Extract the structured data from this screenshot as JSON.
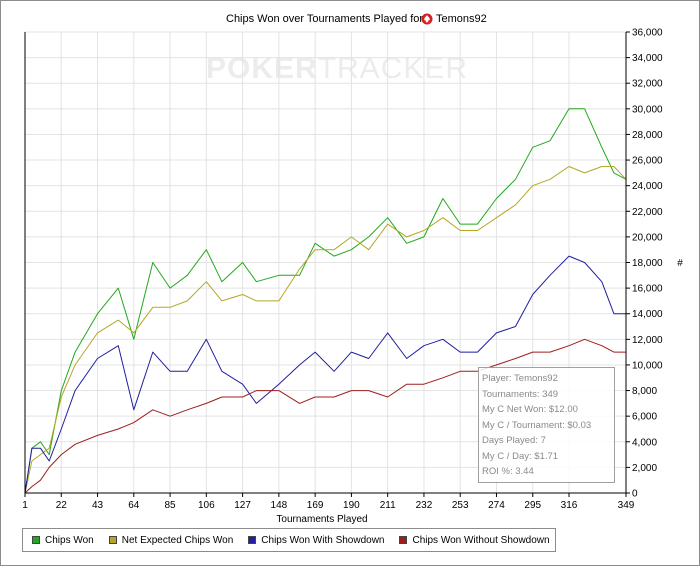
{
  "chart_data": {
    "type": "line",
    "title": "Chips Won over Tournaments Played for",
    "player": "Temons92",
    "xlabel": "Tournaments Played",
    "ylabel": "#",
    "xlim": [
      1,
      349
    ],
    "ylim": [
      0,
      36000
    ],
    "x_ticks": [
      1,
      22,
      43,
      64,
      85,
      106,
      127,
      148,
      169,
      190,
      211,
      232,
      253,
      274,
      295,
      316,
      349
    ],
    "y_ticks": [
      "0",
      "2,000",
      "4,000",
      "6,000",
      "8,000",
      "10,000",
      "12,000",
      "14,000",
      "16,000",
      "18,000",
      "20,000",
      "22,000",
      "24,000",
      "26,000",
      "28,000",
      "30,000",
      "32,000",
      "34,000",
      "36,000"
    ],
    "grid": true,
    "legend_position": "bottom",
    "x": [
      1,
      5,
      10,
      15,
      22,
      30,
      43,
      55,
      64,
      75,
      85,
      95,
      106,
      115,
      127,
      135,
      148,
      160,
      169,
      180,
      190,
      200,
      211,
      222,
      232,
      243,
      253,
      263,
      274,
      285,
      295,
      305,
      316,
      325,
      335,
      342,
      349
    ],
    "series": [
      {
        "name": "Chips Won",
        "color": "#22a81e",
        "values": [
          0,
          3500,
          4000,
          3000,
          8000,
          11000,
          14000,
          16000,
          12000,
          18000,
          16000,
          17000,
          19000,
          16500,
          18000,
          16500,
          17000,
          17000,
          19500,
          18500,
          19000,
          20000,
          21500,
          19500,
          20000,
          23000,
          21000,
          21000,
          23000,
          24500,
          27000,
          27500,
          30000,
          30000,
          27000,
          25000,
          24500
        ]
      },
      {
        "name": "Net Expected Chips Won",
        "color": "#b5a627",
        "values": [
          0,
          2500,
          3000,
          3500,
          7500,
          10000,
          12500,
          13500,
          12500,
          14500,
          14500,
          15000,
          16500,
          15000,
          15500,
          15000,
          15000,
          17500,
          19000,
          19000,
          20000,
          19000,
          21000,
          20000,
          20500,
          21500,
          20500,
          20500,
          21500,
          22500,
          24000,
          24500,
          25500,
          25000,
          25500,
          25500,
          24500
        ]
      },
      {
        "name": "Chips Won With Showdown",
        "color": "#1f1fa0",
        "values": [
          0,
          3500,
          3500,
          2500,
          5000,
          8000,
          10500,
          11500,
          6500,
          11000,
          9500,
          9500,
          12000,
          9500,
          8500,
          7000,
          8500,
          10000,
          11000,
          9500,
          11000,
          10500,
          12500,
          10500,
          11500,
          12000,
          11000,
          11000,
          12500,
          13000,
          15500,
          17000,
          18500,
          18000,
          16500,
          14000,
          14000
        ]
      },
      {
        "name": "Chips Won Without Showdown",
        "color": "#a01d1d",
        "values": [
          0,
          500,
          1000,
          2000,
          3000,
          3800,
          4500,
          5000,
          5500,
          6500,
          6000,
          6500,
          7000,
          7500,
          7500,
          8000,
          8000,
          7000,
          7500,
          7500,
          8000,
          8000,
          7500,
          8500,
          8500,
          9000,
          9500,
          9500,
          10000,
          10500,
          11000,
          11000,
          11500,
          12000,
          11500,
          11000,
          11000
        ]
      }
    ]
  },
  "watermark": {
    "bold": "POKER",
    "thin": "TRACKER"
  },
  "infobox": [
    "Player: Temons92",
    "Tournaments: 349",
    "My C Net Won: $12.00",
    "My C / Tournament: $0.03",
    "Days Played: 7",
    "My C / Day: $1.71",
    "ROI %: 3.44"
  ],
  "colors": {
    "grid": "#e3e3e3",
    "axis": "#000000",
    "spade": "#d62020"
  }
}
